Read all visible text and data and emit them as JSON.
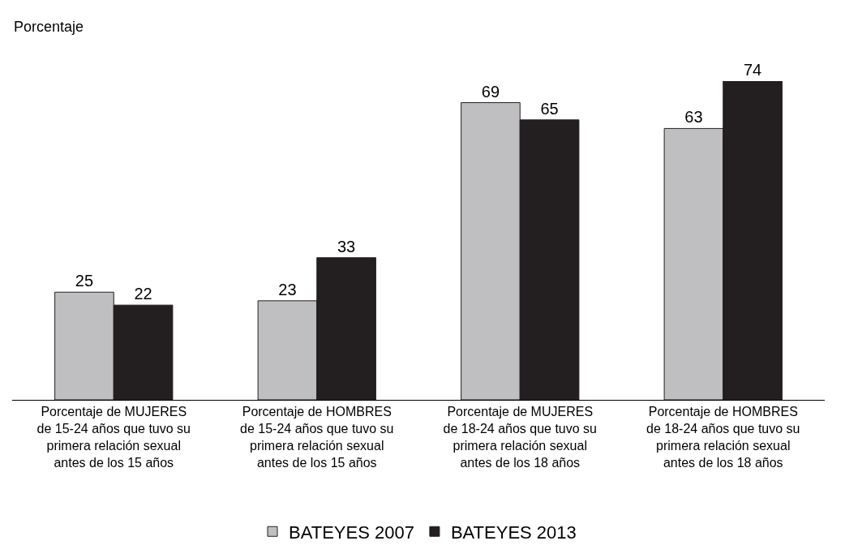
{
  "chart_data": {
    "type": "bar",
    "annotations": [
      "Porcentaje"
    ],
    "categories": [
      "Porcentaje de MUJERES\nde 15-24 años que tuvo su\nprimera relación sexual\nantes de los 15 años",
      "Porcentaje de HOMBRES\nde 15-24 años que tuvo su\nprimera relación sexual\nantes de los 15 años",
      "Porcentaje de MUJERES\nde 18-24 años que tuvo su\nprimera relación sexual\nantes de los 18 años",
      "Porcentaje de HOMBRES\nde 18-24 años que tuvo su\nprimera relación sexual\nantes de los 18 años"
    ],
    "series": [
      {
        "name": "BATEYES 2007",
        "color": "#bfbfc1",
        "values": [
          25,
          23,
          69,
          63
        ]
      },
      {
        "name": "BATEYES 2013",
        "color": "#231f20",
        "values": [
          22,
          33,
          65,
          74
        ]
      }
    ],
    "data_labels": true,
    "legend": "bottom"
  }
}
